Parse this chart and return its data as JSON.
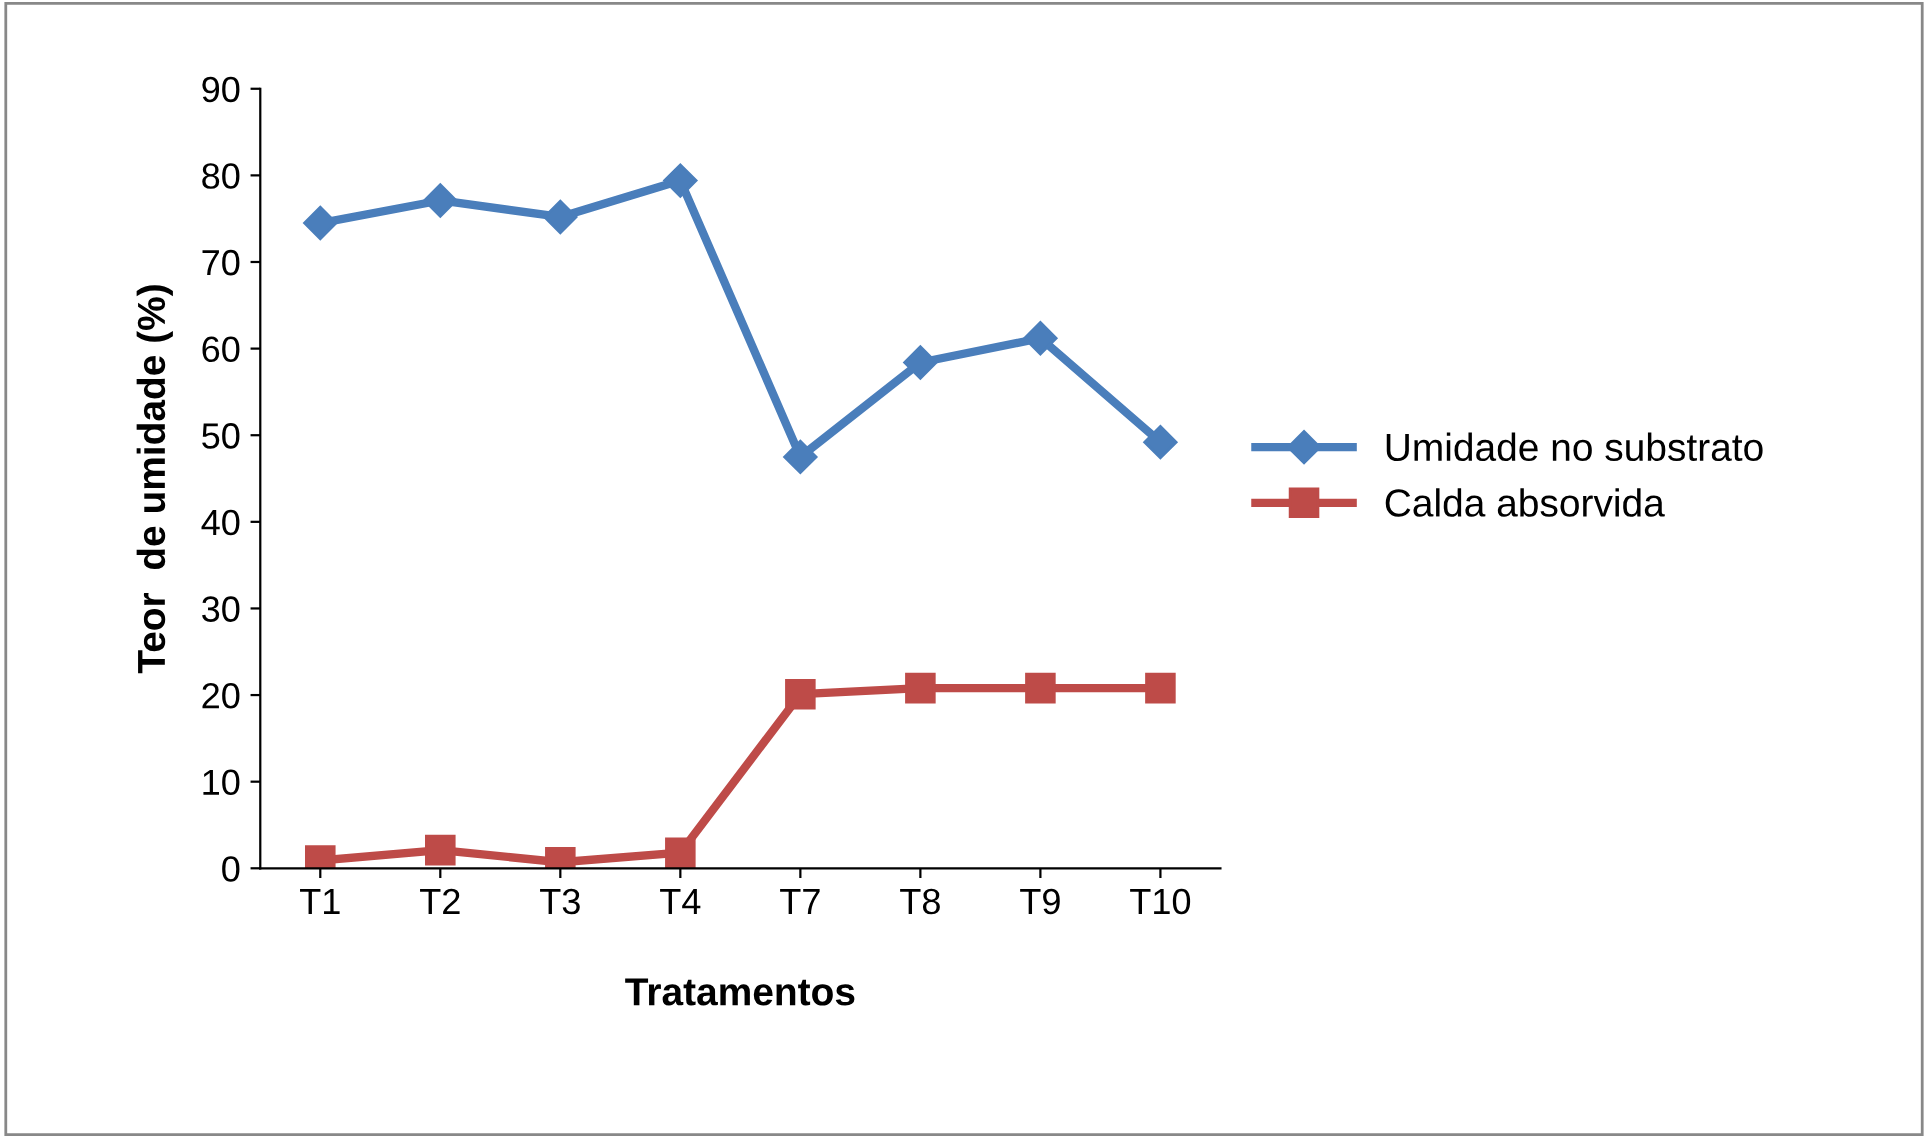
{
  "chart_data": {
    "type": "line",
    "xlabel": "Tratamentos",
    "ylabel": "Teor  de umidade (%)",
    "categories": [
      "T1",
      "T2",
      "T3",
      "T4",
      "T7",
      "T8",
      "T9",
      "T10"
    ],
    "series": [
      {
        "name": "Umidade no substrato",
        "color": "#4a7ebb",
        "marker": "diamond",
        "values": [
          74.5,
          77.1,
          75.2,
          79.4,
          47.5,
          58.4,
          61.2,
          49.2
        ]
      },
      {
        "name": "Calda absorvida",
        "color": "#be4b48",
        "marker": "square",
        "values": [
          0.9,
          2.1,
          0.7,
          1.8,
          20.1,
          20.8,
          20.8,
          20.8
        ]
      }
    ],
    "ylim": [
      0,
      90
    ],
    "yticks": [
      0,
      10,
      20,
      30,
      40,
      50,
      60,
      70,
      80,
      90
    ],
    "grid": false,
    "legend": "right"
  }
}
